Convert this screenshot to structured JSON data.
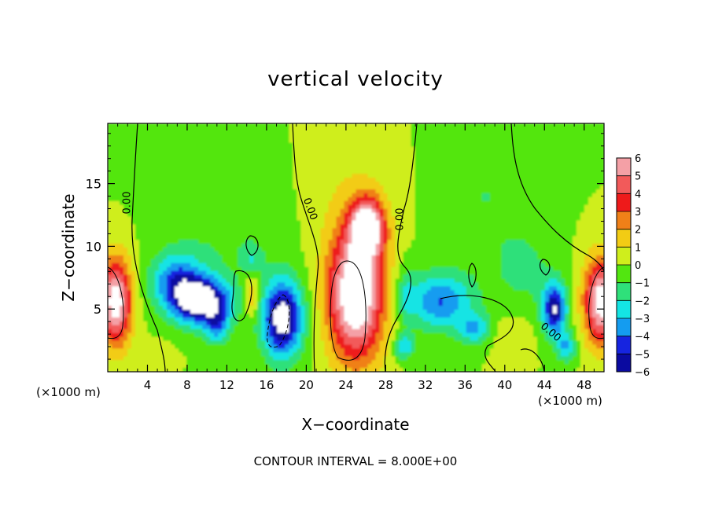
{
  "chart_data": {
    "type": "heatmap",
    "title": "vertical velocity",
    "xlabel": "X−coordinate",
    "ylabel": "Z−coordinate",
    "x_unit_left": "(×1000 m)",
    "x_unit_right": "(×1000 m)",
    "footer": "CONTOUR INTERVAL = 8.000E+00",
    "xlim": [
      0,
      50
    ],
    "ylim": [
      0,
      19.8
    ],
    "x_ticks": [
      4,
      8,
      12,
      16,
      20,
      24,
      28,
      32,
      36,
      40,
      44,
      48
    ],
    "y_ticks": [
      5,
      10,
      15
    ],
    "colorbar": {
      "range": [
        -6,
        6
      ],
      "labels": [
        "6",
        "5",
        "4",
        "3",
        "2",
        "1",
        "0",
        "−1",
        "−2",
        "−3",
        "−4",
        "−5",
        "−6"
      ],
      "levels": [
        {
          "value": 5.5,
          "color": "#f4a0a6"
        },
        {
          "value": 4.5,
          "color": "#f25a5a"
        },
        {
          "value": 3.5,
          "color": "#ee1a1a"
        },
        {
          "value": 2.5,
          "color": "#f08018"
        },
        {
          "value": 1.5,
          "color": "#f2cc14"
        },
        {
          "value": 0.5,
          "color": "#cfee1c"
        },
        {
          "value": -0.5,
          "color": "#52e610"
        },
        {
          "value": -1.5,
          "color": "#2fe07a"
        },
        {
          "value": -2.5,
          "color": "#14e4e4"
        },
        {
          "value": -3.5,
          "color": "#149cf0"
        },
        {
          "value": -4.5,
          "color": "#1624e0"
        },
        {
          "value": -5.5,
          "color": "#0a0aa0"
        },
        {
          "value": -6.0,
          "color": "#6a0ab0"
        }
      ]
    },
    "contour_labels": [
      "0.00",
      "0.00",
      "0.00",
      "0.00"
    ],
    "features": [
      {
        "x": 0.8,
        "z": 5.6,
        "rx": 1.6,
        "rz": 3.4,
        "w": 7
      },
      {
        "x": 49.8,
        "z": 5.6,
        "rx": 1.8,
        "rz": 3.4,
        "w": 7
      },
      {
        "x": 25.0,
        "z": 6.2,
        "rx": 2.8,
        "rz": 5.2,
        "w": 8
      },
      {
        "x": 26.2,
        "z": 11.5,
        "rx": 1.6,
        "rz": 2.2,
        "w": 7
      },
      {
        "x": 9.5,
        "z": 5.6,
        "rx": 2.8,
        "rz": 1.8,
        "w": -7
      },
      {
        "x": 7.0,
        "z": 7.2,
        "rx": 2.6,
        "rz": 2.2,
        "w": -4
      },
      {
        "x": 11.0,
        "z": 3.6,
        "rx": 1.2,
        "rz": 1.4,
        "w": -3
      },
      {
        "x": 17.6,
        "z": 4.2,
        "rx": 2.0,
        "rz": 3.0,
        "w": -7
      },
      {
        "x": 14.5,
        "z": 6.0,
        "rx": 0.8,
        "rz": 1.6,
        "w": 2.5
      },
      {
        "x": 14.5,
        "z": 9.0,
        "rx": 1.0,
        "rz": 1.0,
        "w": -1.5
      },
      {
        "x": 33.5,
        "z": 5.6,
        "rx": 3.2,
        "rz": 2.2,
        "w": -4
      },
      {
        "x": 37.0,
        "z": 3.4,
        "rx": 1.6,
        "rz": 1.2,
        "w": -3
      },
      {
        "x": 30.0,
        "z": 6.2,
        "rx": 1.0,
        "rz": 2.4,
        "w": -1.5
      },
      {
        "x": 29.8,
        "z": 2.0,
        "rx": 1.0,
        "rz": 1.0,
        "w": -3
      },
      {
        "x": 45.0,
        "z": 5.0,
        "rx": 1.2,
        "rz": 2.0,
        "w": -6
      },
      {
        "x": 46.2,
        "z": 2.0,
        "rx": 1.0,
        "rz": 1.2,
        "w": -3
      },
      {
        "x": 40.5,
        "z": 3.0,
        "rx": 2.2,
        "rz": 1.6,
        "w": 0.8
      },
      {
        "x": 24.2,
        "z": 14.5,
        "rx": 5.0,
        "rz": 5.0,
        "w": 0.7
      },
      {
        "x": 5.0,
        "z": 1.2,
        "rx": 1.5,
        "rz": 1.0,
        "w": 1.0
      },
      {
        "x": 12.0,
        "z": 12.0,
        "rx": 6.0,
        "rz": 6.0,
        "w": -1.0
      },
      {
        "x": 38.0,
        "z": 14.0,
        "rx": 5.0,
        "rz": 6.0,
        "w": -1.0
      },
      {
        "x": 42.0,
        "z": 8.0,
        "rx": 3.0,
        "rz": 3.0,
        "w": -1.2
      }
    ],
    "grid": false,
    "legend_position": "right"
  }
}
